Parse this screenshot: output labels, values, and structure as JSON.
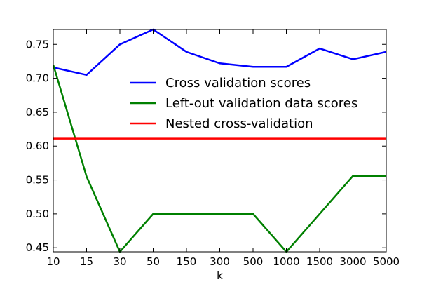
{
  "chart_data": {
    "type": "line",
    "title": "",
    "xlabel": "k",
    "ylabel": "",
    "categories": [
      "10",
      "15",
      "30",
      "50",
      "150",
      "300",
      "500",
      "1000",
      "1500",
      "3000",
      "5000"
    ],
    "ylim": [
      0.444,
      0.772
    ],
    "yticks": [
      "0.45",
      "0.50",
      "0.55",
      "0.60",
      "0.65",
      "0.70",
      "0.75"
    ],
    "grid": false,
    "legend_position": "upper-center",
    "series": [
      {
        "name": "Cross validation scores",
        "color": "#0000ff",
        "values": [
          0.716,
          0.705,
          0.75,
          0.772,
          0.739,
          0.722,
          0.717,
          0.717,
          0.744,
          0.728,
          0.739
        ]
      },
      {
        "name": "Left-out validation data scores",
        "color": "#008000",
        "values": [
          0.72,
          0.555,
          0.444,
          0.5,
          0.5,
          0.5,
          0.5,
          0.444,
          0.5,
          0.556,
          0.556
        ]
      },
      {
        "name": "Nested cross-validation",
        "color": "#ff0000",
        "values": [
          0.611,
          0.611,
          0.611,
          0.611,
          0.611,
          0.611,
          0.611,
          0.611,
          0.611,
          0.611,
          0.611
        ]
      }
    ]
  }
}
